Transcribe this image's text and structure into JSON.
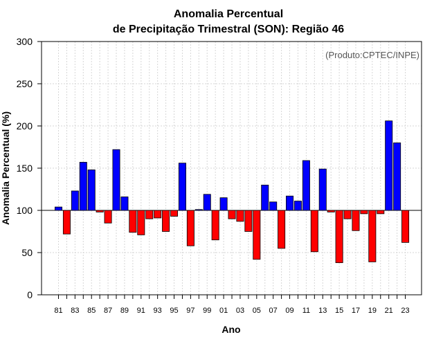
{
  "chart_data": {
    "type": "bar",
    "title_line1": "Anomalia Percentual",
    "title_line2": "de Precipitação Trimestral (SON): Região 46",
    "xlabel": "Ano",
    "ylabel": "Anomalia Percentual (%)",
    "credit": "(Produto:CPTEC/INPE)",
    "baseline": 100,
    "ylim": [
      0,
      300
    ],
    "yticks": [
      0,
      50,
      100,
      150,
      200,
      250,
      300
    ],
    "ytick_labels": [
      "0",
      "50",
      "100",
      "150",
      "200",
      "250",
      "300"
    ],
    "grid": true,
    "above_color": "#0000ff",
    "below_color": "#ff0000",
    "categories": [
      "81",
      "82",
      "83",
      "84",
      "85",
      "86",
      "87",
      "88",
      "89",
      "90",
      "91",
      "92",
      "93",
      "94",
      "95",
      "96",
      "97",
      "98",
      "99",
      "00",
      "01",
      "02",
      "03",
      "04",
      "05",
      "06",
      "07",
      "08",
      "09",
      "10",
      "11",
      "12",
      "13",
      "14",
      "15",
      "16",
      "17",
      "18",
      "19",
      "20",
      "21",
      "22",
      "23"
    ],
    "tick_labels": [
      "81",
      "",
      "83",
      "",
      "85",
      "",
      "87",
      "",
      "89",
      "",
      "91",
      "",
      "93",
      "",
      "95",
      "",
      "97",
      "",
      "99",
      "",
      "01",
      "",
      "03",
      "",
      "05",
      "",
      "07",
      "",
      "09",
      "",
      "11",
      "",
      "13",
      "",
      "15",
      "",
      "17",
      "",
      "19",
      "",
      "21",
      "",
      "23"
    ],
    "values": [
      104,
      72,
      123,
      157,
      148,
      98,
      85,
      172,
      116,
      74,
      71,
      90,
      91,
      75,
      93,
      156,
      58,
      101,
      119,
      65,
      115,
      90,
      87,
      75,
      42,
      130,
      110,
      55,
      117,
      111,
      159,
      51,
      149,
      98,
      38,
      90,
      76,
      96,
      39,
      96,
      206,
      180,
      62
    ]
  }
}
